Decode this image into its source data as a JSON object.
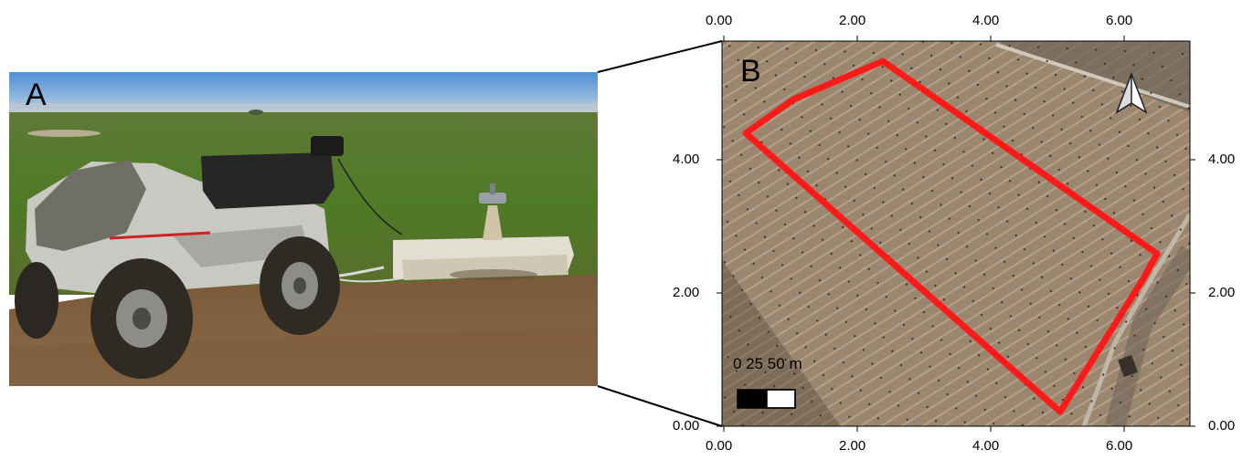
{
  "panel_a": {
    "label": "A"
  },
  "panel_b": {
    "label": "B",
    "x_ticks": [
      "0.00",
      "2.00",
      "4.00",
      "6.00"
    ],
    "y_ticks": [
      "0.00",
      "2.00",
      "4.00"
    ],
    "scale_bar": {
      "text": "0  25 50 m"
    },
    "north_arrow": {
      "icon": "north-arrow-icon"
    },
    "field_boundary_color": "#ff1a1a"
  }
}
